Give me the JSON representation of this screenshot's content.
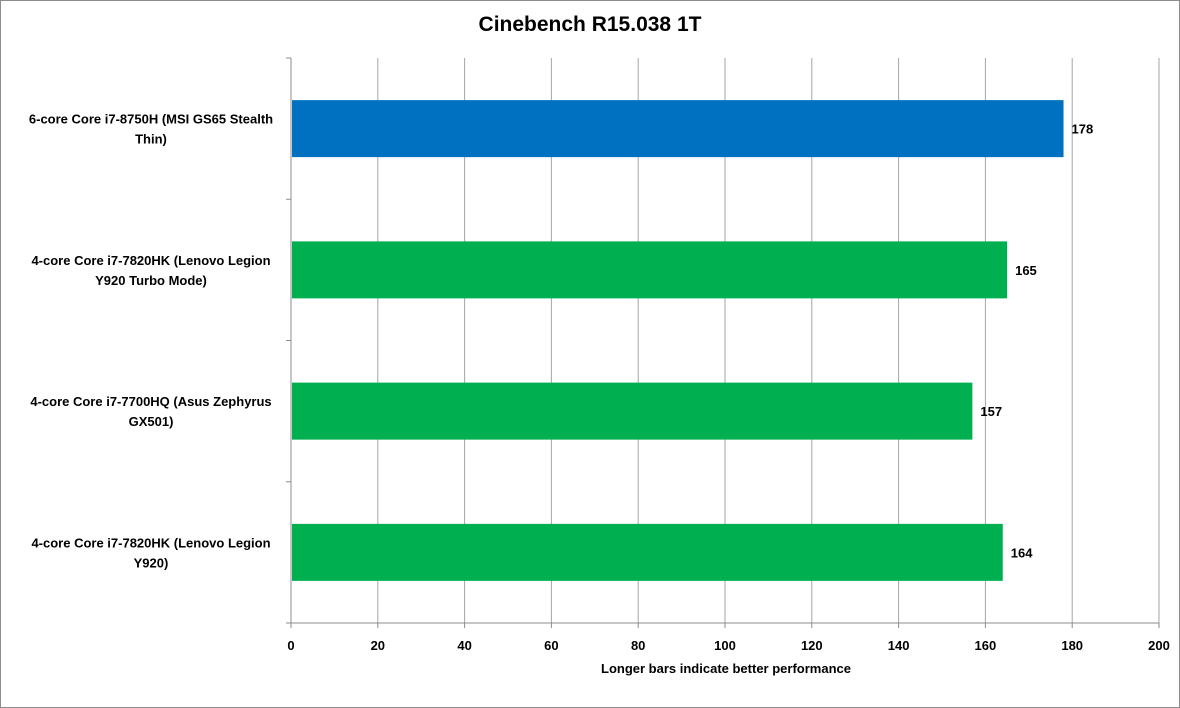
{
  "chart_data": {
    "type": "bar",
    "orientation": "horizontal",
    "title": "Cinebench R15.038 1T",
    "xlabel": "Longer bars indicate better performance",
    "ylabel": "",
    "xlim": [
      0,
      200
    ],
    "x_ticks": [
      0,
      20,
      40,
      60,
      80,
      100,
      120,
      140,
      160,
      180,
      200
    ],
    "grid": true,
    "legend": "none",
    "categories": [
      [
        "6-core Core i7-8750H (MSI GS65 Stealth",
        "Thin)"
      ],
      [
        "4-core Core i7-7820HK (Lenovo Legion",
        "Y920 Turbo Mode)"
      ],
      [
        "4-core Core i7-7700HQ (Asus Zephyrus",
        "GX501)"
      ],
      [
        "4-core Core i7-7820HK (Lenovo Legion",
        "Y920)"
      ]
    ],
    "values": [
      178,
      165,
      157,
      164
    ],
    "bar_colors": [
      "#0070c0",
      "#00b050",
      "#00b050",
      "#00b050"
    ],
    "gridline_color": "#a6a6a6"
  }
}
